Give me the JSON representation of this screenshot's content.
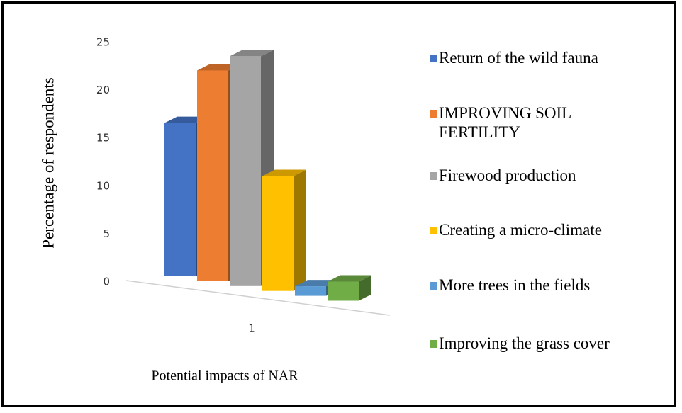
{
  "chart_data": {
    "type": "bar3d",
    "y_label": "Percentage of respondents",
    "x_label": "Potential impacts of NAR",
    "categories": [
      "1"
    ],
    "ylim": [
      0,
      25
    ],
    "yticks": [
      0,
      5,
      10,
      15,
      20,
      25
    ],
    "legend": "right",
    "series": [
      {
        "name": "Return of the wild fauna",
        "color": "#4472c4",
        "values": [
          16
        ]
      },
      {
        "name": "IMPROVING SOIL FERTILITY",
        "color": "#ed7d31",
        "values": [
          22
        ]
      },
      {
        "name": "Firewood production",
        "color": "#a5a5a5",
        "values": [
          24
        ]
      },
      {
        "name": "Creating a micro-climate",
        "color": "#ffc000",
        "values": [
          12
        ]
      },
      {
        "name": "More trees in the fields",
        "color": "#5b9bd5",
        "values": [
          1
        ]
      },
      {
        "name": "Improving the grass cover",
        "color": "#70ad47",
        "values": [
          2
        ]
      }
    ]
  }
}
